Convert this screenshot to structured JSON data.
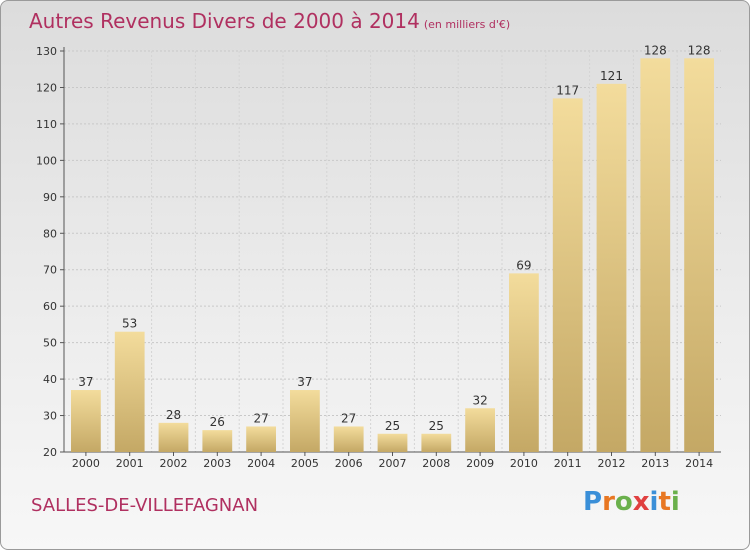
{
  "header": {
    "title": "Autres Revenus Divers de 2000 à 2014",
    "unit": "(en milliers d'€)"
  },
  "footer": {
    "city": "SALLES-DE-VILLEFAGNAN",
    "logo": {
      "letters": [
        "P",
        "r",
        "o",
        "x",
        "i",
        "t",
        "i"
      ],
      "colors": [
        "#3a8fd8",
        "#e87722",
        "#6ab04c",
        "#e04040",
        "#3a8fd8",
        "#e87722",
        "#6ab04c"
      ]
    }
  },
  "chart_data": {
    "type": "bar",
    "categories": [
      "2000",
      "2001",
      "2002",
      "2003",
      "2004",
      "2005",
      "2006",
      "2007",
      "2008",
      "2009",
      "2010",
      "2011",
      "2012",
      "2013",
      "2014"
    ],
    "values": [
      37,
      53,
      28,
      26,
      27,
      37,
      27,
      25,
      25,
      32,
      69,
      117,
      121,
      128,
      128
    ],
    "title": "Autres Revenus Divers de 2000 à 2014",
    "unit": "(en milliers d'€)",
    "ylim": [
      20,
      130
    ],
    "yticks": [
      20,
      30,
      40,
      50,
      60,
      70,
      80,
      90,
      100,
      110,
      120,
      130
    ],
    "grid": true,
    "bar_color": "#eed28e"
  }
}
